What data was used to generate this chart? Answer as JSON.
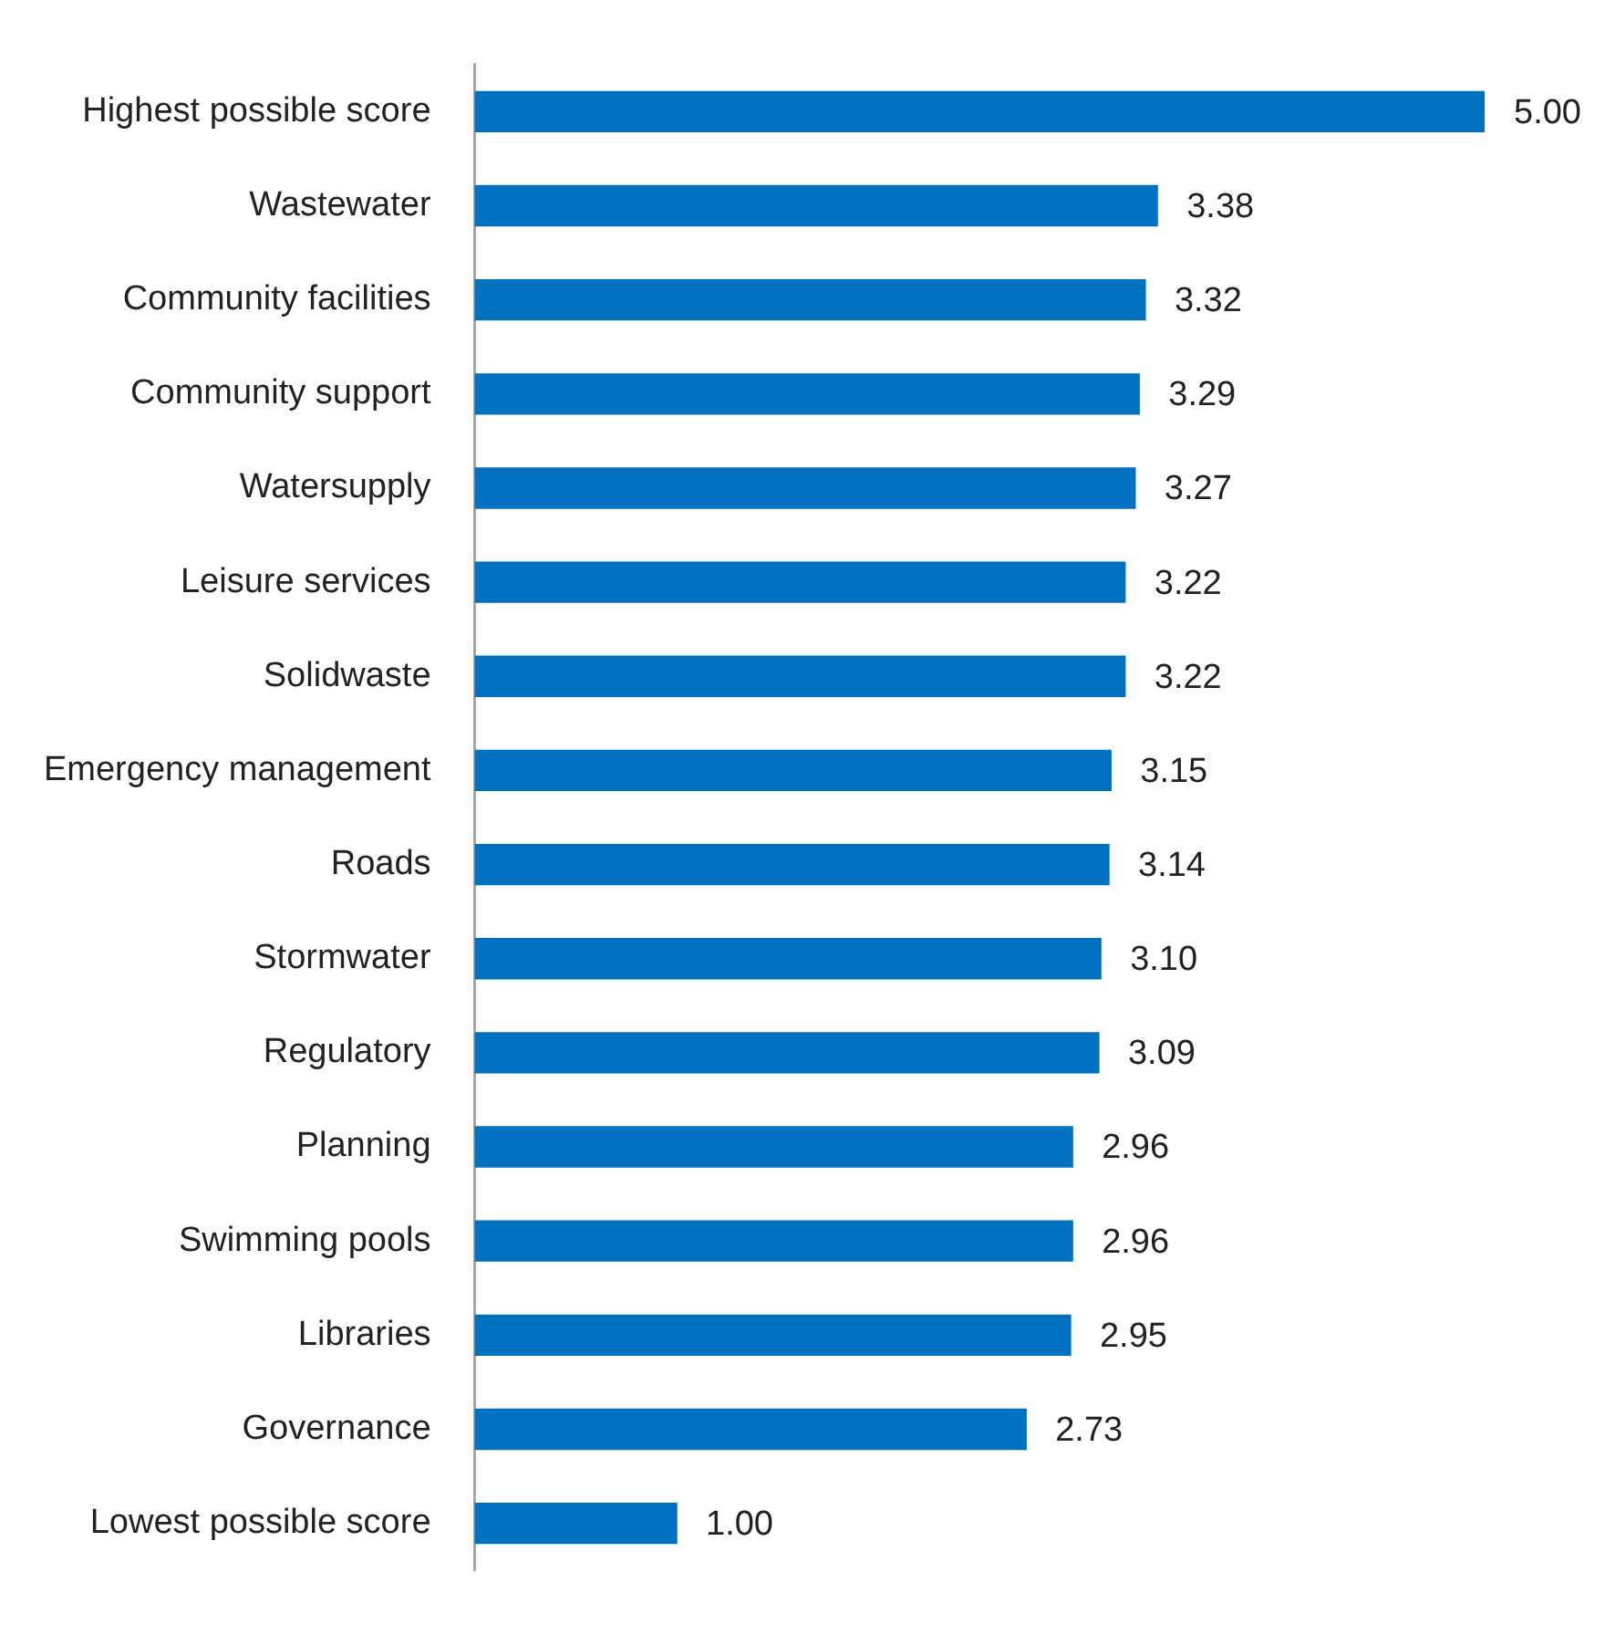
{
  "chart_data": {
    "type": "bar",
    "orientation": "horizontal",
    "categories": [
      "Highest possible score",
      "Wastewater",
      "Community facilities",
      "Community support",
      "Watersupply",
      "Leisure services",
      "Solidwaste",
      "Emergency management",
      "Roads",
      "Stormwater",
      "Regulatory",
      "Planning",
      "Swimming pools",
      "Libraries",
      "Governance",
      "Lowest possible score"
    ],
    "values": [
      5.0,
      3.38,
      3.32,
      3.29,
      3.27,
      3.22,
      3.22,
      3.15,
      3.14,
      3.1,
      3.09,
      2.96,
      2.96,
      2.95,
      2.73,
      1.0
    ],
    "value_labels": [
      "5.00",
      "3.38",
      "3.32",
      "3.29",
      "3.27",
      "3.22",
      "3.22",
      "3.15",
      "3.14",
      "3.10",
      "3.09",
      "2.96",
      "2.96",
      "2.95",
      "2.73",
      "1.00"
    ],
    "color": "#0070c0",
    "xlim": [
      0,
      5
    ],
    "grid": false,
    "legend": false,
    "tick_labels": "y"
  }
}
